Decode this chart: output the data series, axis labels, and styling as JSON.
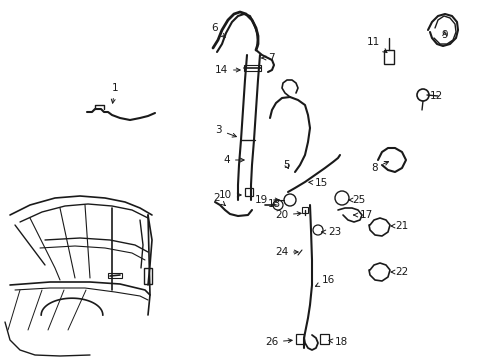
{
  "bg_color": "#ffffff",
  "line_color": "#1a1a1a",
  "text_color": "#1a1a1a",
  "figsize": [
    4.89,
    3.6
  ],
  "dpi": 100
}
